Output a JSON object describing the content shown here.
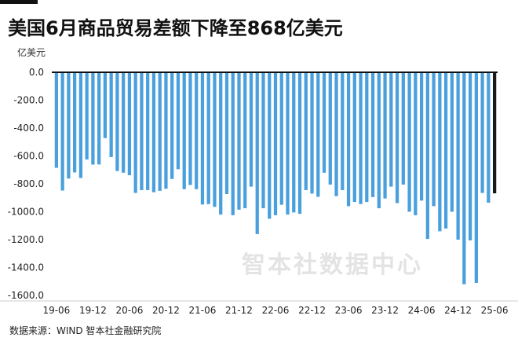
{
  "title": "美国6月商品贸易差额下降至868亿美元",
  "unit_label": "亿美元",
  "source": "数据来源：WIND 智本社金融研究院",
  "watermark": "智本社数据中心",
  "colors": {
    "bar": "#4a9fdd",
    "last_bar": "#1a1a1a",
    "axis": "#111111",
    "grid": "#cccccc"
  },
  "chart_data": {
    "type": "bar",
    "title": "美国6月商品贸易差额下降至868亿美元",
    "ylabel": "亿美元",
    "xlabel": "",
    "ylim": [
      -1600,
      0
    ],
    "yticks": [
      "0.0",
      "-200.0",
      "-400.0",
      "-600.0",
      "-800.0",
      "-1000.0",
      "-1200.0",
      "-1400.0",
      "-1600.0"
    ],
    "x_tick_labels": [
      "19-06",
      "19-12",
      "20-06",
      "20-12",
      "21-06",
      "21-12",
      "22-06",
      "22-12",
      "23-06",
      "23-12",
      "24-06",
      "24-12",
      "25-06"
    ],
    "x_tick_every": 6,
    "grid": false,
    "categories": [
      "19-06",
      "19-07",
      "19-08",
      "19-09",
      "19-10",
      "19-11",
      "19-12",
      "20-01",
      "20-02",
      "20-03",
      "20-04",
      "20-05",
      "20-06",
      "20-07",
      "20-08",
      "20-09",
      "20-10",
      "20-11",
      "20-12",
      "21-01",
      "21-02",
      "21-03",
      "21-04",
      "21-05",
      "21-06",
      "21-07",
      "21-08",
      "21-09",
      "21-10",
      "21-11",
      "21-12",
      "22-01",
      "22-02",
      "22-03",
      "22-04",
      "22-05",
      "22-06",
      "22-07",
      "22-08",
      "22-09",
      "22-10",
      "22-11",
      "22-12",
      "23-01",
      "23-02",
      "23-03",
      "23-04",
      "23-05",
      "23-06",
      "23-07",
      "23-08",
      "23-09",
      "23-10",
      "23-11",
      "23-12",
      "24-01",
      "24-02",
      "24-03",
      "24-04",
      "24-05",
      "24-06",
      "24-07",
      "24-08",
      "24-09",
      "24-10",
      "24-11",
      "24-12",
      "25-01",
      "25-02",
      "25-03",
      "25-04",
      "25-05",
      "25-06"
    ],
    "values": [
      -685,
      -848,
      -762,
      -718,
      -758,
      -625,
      -662,
      -661,
      -472,
      -608,
      -708,
      -720,
      -738,
      -865,
      -845,
      -845,
      -860,
      -850,
      -835,
      -765,
      -695,
      -838,
      -808,
      -838,
      -948,
      -945,
      -965,
      -1020,
      -873,
      -1025,
      -985,
      -975,
      -820,
      -1160,
      -975,
      -1050,
      -1025,
      -950,
      -1020,
      -1005,
      -1015,
      -845,
      -870,
      -893,
      -720,
      -805,
      -888,
      -845,
      -960,
      -930,
      -945,
      -930,
      -895,
      -975,
      -905,
      -820,
      -938,
      -805,
      -1000,
      -1025,
      -920,
      -1195,
      -960,
      -1140,
      -1120,
      -1000,
      -1200,
      -1520,
      -1205,
      -1510,
      -865,
      -935,
      -868
    ]
  }
}
